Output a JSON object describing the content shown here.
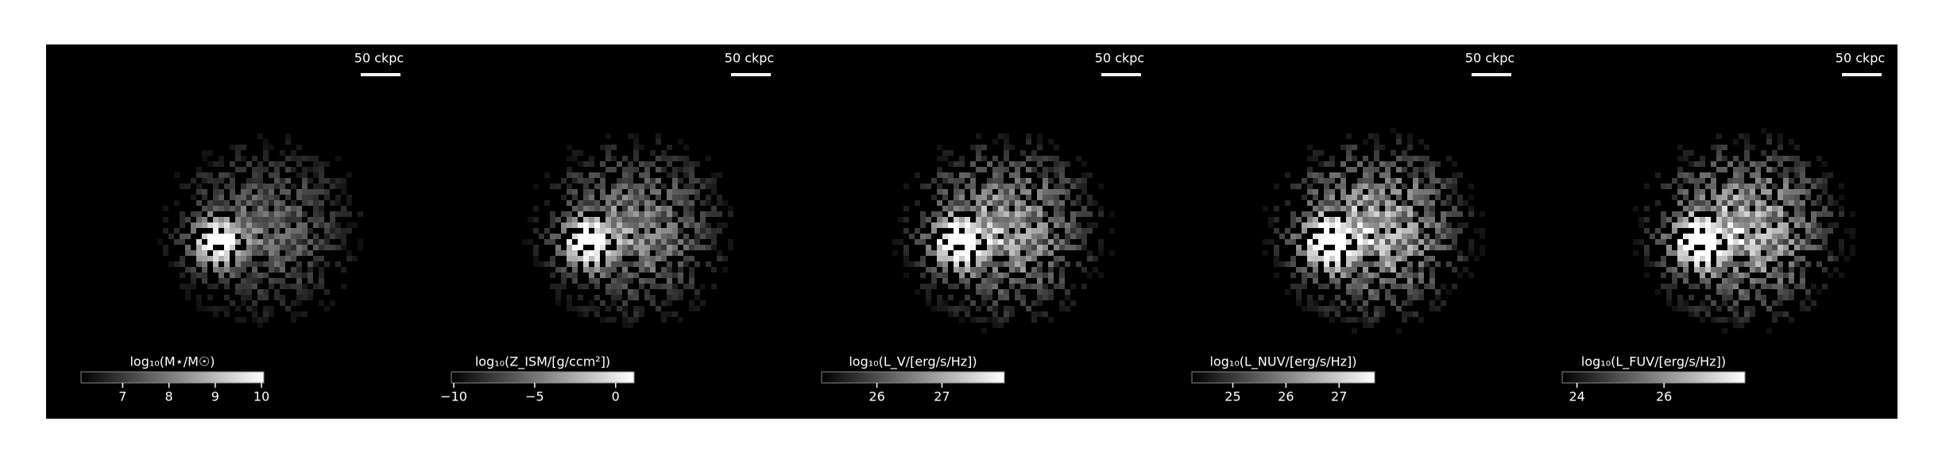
{
  "chart_data": [
    {
      "type": "image",
      "scale_label": "50 ckpc",
      "colorbar_label": "log₁₀(M⋆/M☉)",
      "clim": [
        6.1,
        10.05
      ],
      "cticks": [
        7,
        8,
        9,
        10
      ],
      "brightness": 0.55
    },
    {
      "type": "image",
      "scale_label": "50 ckpc",
      "colorbar_label": "log₁₀(Z_ISM/[g/ccm²])",
      "clim": [
        -10.15,
        1.14
      ],
      "cticks": [
        {
          "value": -10,
          "label": "−10"
        },
        {
          "value": -5,
          "label": "−5"
        },
        0
      ],
      "brightness": 0.7
    },
    {
      "type": "image",
      "scale_label": "50 ckpc",
      "colorbar_label": "log₁₀(L_V/[erg/s/Hz])",
      "clim": [
        25.15,
        27.96
      ],
      "cticks": [
        26,
        27
      ],
      "brightness": 0.85
    },
    {
      "type": "image",
      "scale_label": "50 ckpc",
      "colorbar_label": "log₁₀(L_NUV/[erg/s/Hz])",
      "clim": [
        24.23,
        27.67
      ],
      "cticks": [
        25,
        26,
        27
      ],
      "brightness": 0.95
    },
    {
      "type": "image",
      "scale_label": "50 ckpc",
      "colorbar_label": "log₁₀(L_FUV/[erg/s/Hz])",
      "clim": [
        23.66,
        27.86
      ],
      "cticks": [
        24,
        26
      ],
      "brightness": 0.95
    }
  ]
}
